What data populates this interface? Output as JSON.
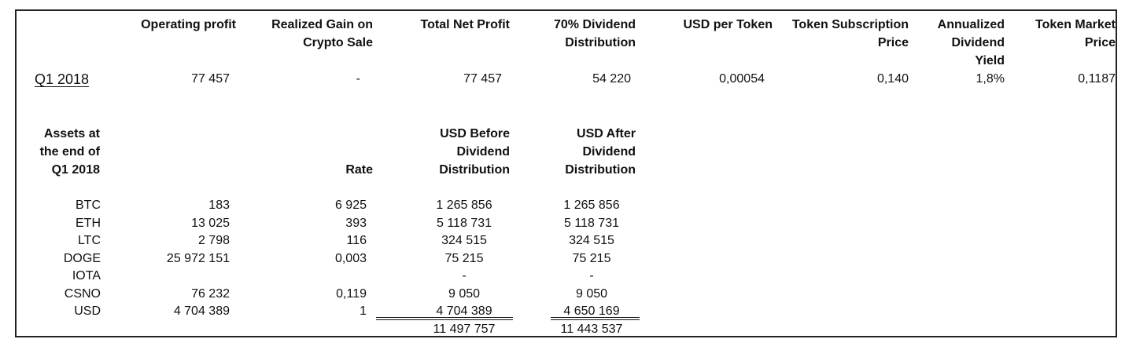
{
  "summary": {
    "headers": [
      "Operating profit",
      "Realized Gain on\nCrypto Sale",
      "Total Net Profit",
      "70% Dividend\nDistribution",
      "USD per Token",
      "Token Subscription\nPrice",
      "Annualized\nDividend\nYield",
      "Token Market\nPrice"
    ],
    "row": {
      "label": "Q1 2018",
      "values": [
        "77 457",
        "-",
        "77 457",
        "54 220",
        "0,00054",
        "0,140",
        "1,8%",
        "0,1187"
      ]
    }
  },
  "assets": {
    "header_label": "Assets at\nthe end of\nQ1 2018",
    "headers": [
      "Rate",
      "USD Before\nDividend\nDistribution",
      "USD After\nDividend\nDistribution"
    ],
    "rows": [
      {
        "asset": "BTC",
        "amount": "183",
        "rate": "6 925",
        "before": "1 265 856",
        "after": "1 265 856"
      },
      {
        "asset": "ETH",
        "amount": "13 025",
        "rate": "393",
        "before": "5 118 731",
        "after": "5 118 731"
      },
      {
        "asset": "LTC",
        "amount": "2 798",
        "rate": "116",
        "before": "324 515",
        "after": "324 515"
      },
      {
        "asset": "DOGE",
        "amount": "25 972 151",
        "rate": "0,003",
        "before": "75 215",
        "after": "75 215"
      },
      {
        "asset": "IOTA",
        "amount": "",
        "rate": "",
        "before": "-",
        "after": "-"
      },
      {
        "asset": "CSNO",
        "amount": "76 232",
        "rate": "0,119",
        "before": "9 050",
        "after": "9 050"
      },
      {
        "asset": "USD",
        "amount": "4 704 389",
        "rate": "1",
        "before": "4 704 389",
        "after": "4 650 169"
      }
    ],
    "totals": {
      "before": "11 497 757",
      "after": "11 443 537"
    }
  }
}
